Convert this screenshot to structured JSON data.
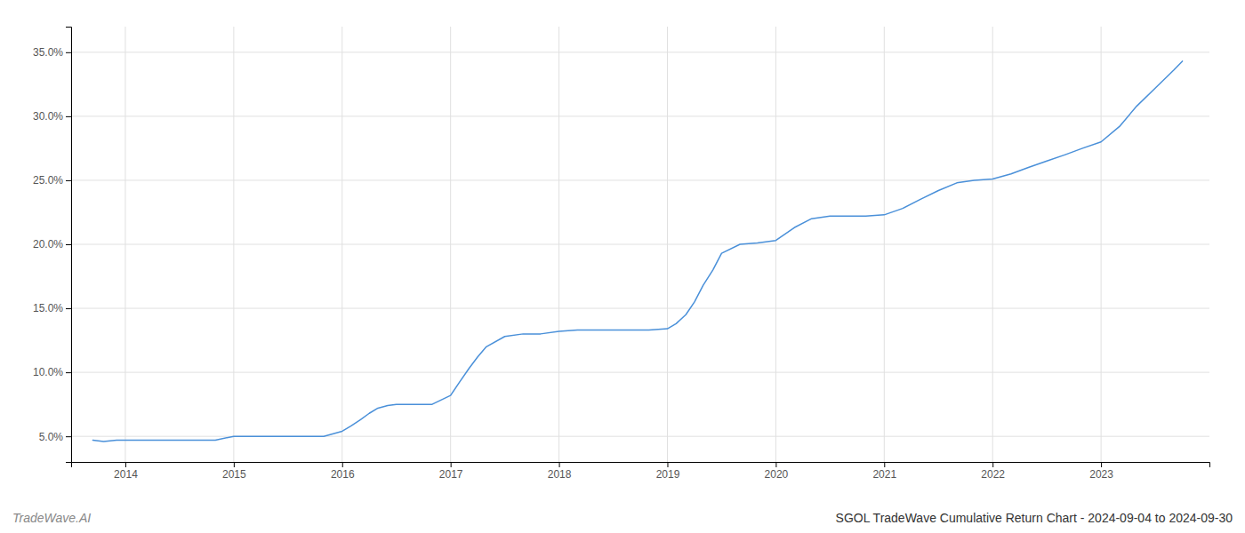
{
  "chart_data": {
    "type": "line",
    "title": "SGOL TradeWave Cumulative Return Chart - 2024-09-04 to 2024-09-30",
    "annotations": [
      "TradeWave.AI"
    ],
    "x": [
      2013.7,
      2013.8,
      2013.92,
      2014.0,
      2014.17,
      2014.33,
      2014.5,
      2014.67,
      2014.83,
      2015.0,
      2015.17,
      2015.33,
      2015.5,
      2015.67,
      2015.83,
      2016.0,
      2016.08,
      2016.17,
      2016.25,
      2016.33,
      2016.42,
      2016.5,
      2016.67,
      2016.83,
      2017.0,
      2017.08,
      2017.17,
      2017.25,
      2017.33,
      2017.5,
      2017.67,
      2017.83,
      2018.0,
      2018.17,
      2018.33,
      2018.5,
      2018.67,
      2018.83,
      2019.0,
      2019.08,
      2019.17,
      2019.25,
      2019.33,
      2019.42,
      2019.5,
      2019.67,
      2019.83,
      2020.0,
      2020.17,
      2020.33,
      2020.5,
      2020.67,
      2020.83,
      2021.0,
      2021.17,
      2021.33,
      2021.5,
      2021.67,
      2021.83,
      2022.0,
      2022.17,
      2022.33,
      2022.5,
      2022.67,
      2022.83,
      2023.0,
      2023.17,
      2023.33,
      2023.5,
      2023.67,
      2023.75
    ],
    "values": [
      0.047,
      0.046,
      0.047,
      0.047,
      0.047,
      0.047,
      0.047,
      0.047,
      0.047,
      0.05,
      0.05,
      0.05,
      0.05,
      0.05,
      0.05,
      0.054,
      0.058,
      0.063,
      0.068,
      0.072,
      0.074,
      0.075,
      0.075,
      0.075,
      0.082,
      0.092,
      0.103,
      0.112,
      0.12,
      0.128,
      0.13,
      0.13,
      0.132,
      0.133,
      0.133,
      0.133,
      0.133,
      0.133,
      0.134,
      0.138,
      0.145,
      0.155,
      0.168,
      0.18,
      0.193,
      0.2,
      0.201,
      0.203,
      0.213,
      0.22,
      0.222,
      0.222,
      0.222,
      0.223,
      0.228,
      0.235,
      0.242,
      0.248,
      0.25,
      0.251,
      0.255,
      0.26,
      0.265,
      0.27,
      0.275,
      0.28,
      0.292,
      0.308,
      0.322,
      0.336,
      0.343
    ],
    "color": "#4a90d9",
    "xlim": [
      2013.5,
      2024.0
    ],
    "xticks": [
      2014,
      2015,
      2016,
      2017,
      2018,
      2019,
      2020,
      2021,
      2022,
      2023
    ],
    "ylim": [
      0.03,
      0.37
    ],
    "yticks": [
      {
        "value": 0.05,
        "label": "5.0%"
      },
      {
        "value": 0.1,
        "label": "10.0%"
      },
      {
        "value": 0.15,
        "label": "15.0%"
      },
      {
        "value": 0.2,
        "label": "20.0%"
      },
      {
        "value": 0.25,
        "label": "25.0%"
      },
      {
        "value": 0.3,
        "label": "30.0%"
      },
      {
        "value": 0.35,
        "label": "35.0%"
      }
    ],
    "grid": true
  }
}
